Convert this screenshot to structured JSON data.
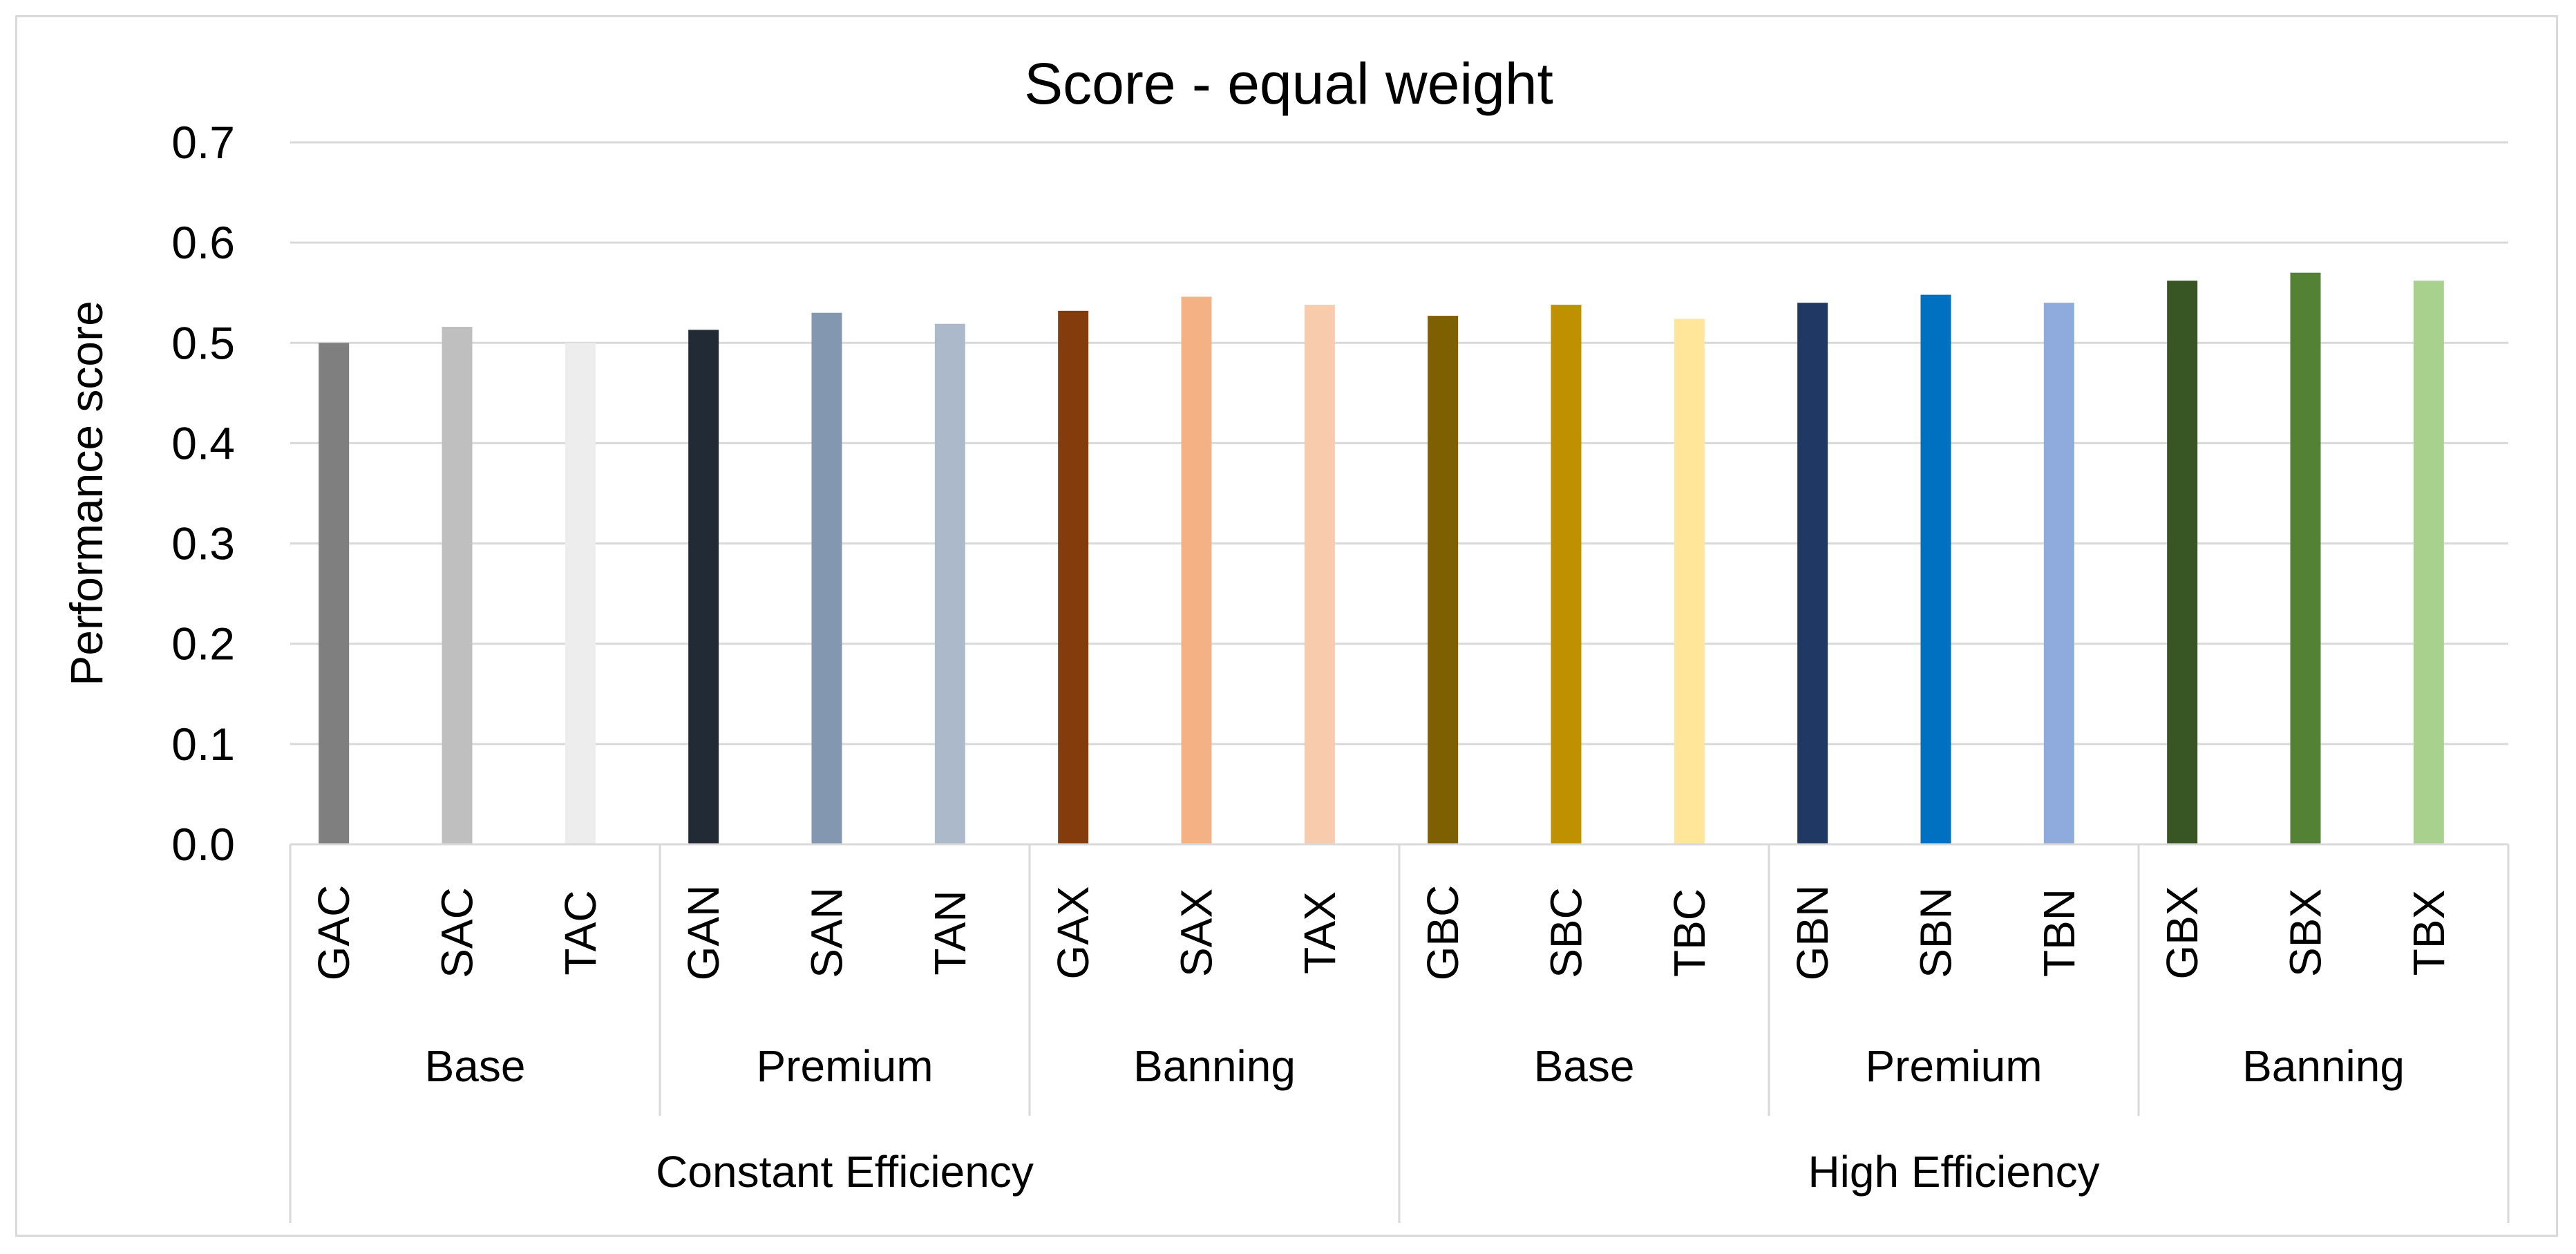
{
  "chart_data": {
    "type": "bar",
    "title": "Score - equal weight",
    "ylabel": "Performance score",
    "xlabel": "",
    "ylim": [
      0,
      0.7
    ],
    "yticks": [
      "0.0",
      "0.1",
      "0.2",
      "0.3",
      "0.4",
      "0.5",
      "0.6",
      "0.7"
    ],
    "grid": true,
    "legend": "none",
    "categories": [
      "GAC",
      "SAC",
      "TAC",
      "GAN",
      "SAN",
      "TAN",
      "GAX",
      "SAX",
      "TAX",
      "GBC",
      "SBC",
      "TBC",
      "GBN",
      "SBN",
      "TBN",
      "GBX",
      "SBX",
      "TBX"
    ],
    "values": [
      0.5,
      0.516,
      0.5,
      0.513,
      0.53,
      0.519,
      0.532,
      0.546,
      0.538,
      0.527,
      0.538,
      0.524,
      0.54,
      0.548,
      0.54,
      0.562,
      0.57,
      0.562
    ],
    "colors": [
      "#7f7f7f",
      "#bfbfbf",
      "#ededed",
      "#222a35",
      "#8497b0",
      "#acb9ca",
      "#843c0c",
      "#f4b183",
      "#f8cbad",
      "#7f6000",
      "#bf9000",
      "#ffe699",
      "#203864",
      "#0070c0",
      "#8faadc",
      "#375623",
      "#548235",
      "#a9d18e"
    ],
    "subgroups": [
      {
        "label": "Base",
        "start": 0,
        "end": 2
      },
      {
        "label": "Premium",
        "start": 3,
        "end": 5
      },
      {
        "label": "Banning",
        "start": 6,
        "end": 8
      },
      {
        "label": "Base",
        "start": 9,
        "end": 11
      },
      {
        "label": "Premium",
        "start": 12,
        "end": 14
      },
      {
        "label": "Banning",
        "start": 15,
        "end": 17
      }
    ],
    "groups": [
      {
        "label": "Constant Efficiency",
        "start": 0,
        "end": 8
      },
      {
        "label": "High Efficiency",
        "start": 9,
        "end": 17
      }
    ]
  }
}
